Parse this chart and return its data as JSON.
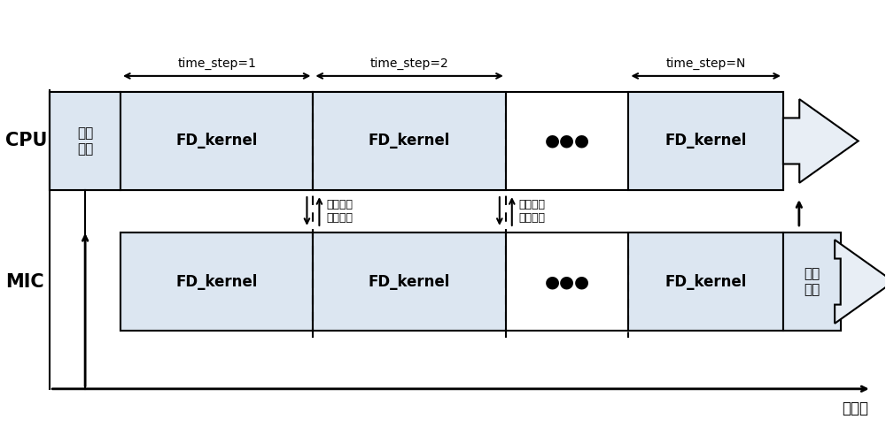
{
  "bg_color": "#ffffff",
  "box_fill": "#dce6f1",
  "box_edge": "#000000",
  "cpu_label": "CPU",
  "mic_label": "MIC",
  "timeline_label": "时间线",
  "data_in_label": "数据\n传入",
  "data_out_label": "数据\n传回",
  "fd_kernel_label": "FD_kernel",
  "exchange_label": "互相交换\n依赖边界",
  "time_step1": "time_step=1",
  "time_step2": "time_step=2",
  "time_stepN": "time_step=N",
  "dots": "●●●"
}
